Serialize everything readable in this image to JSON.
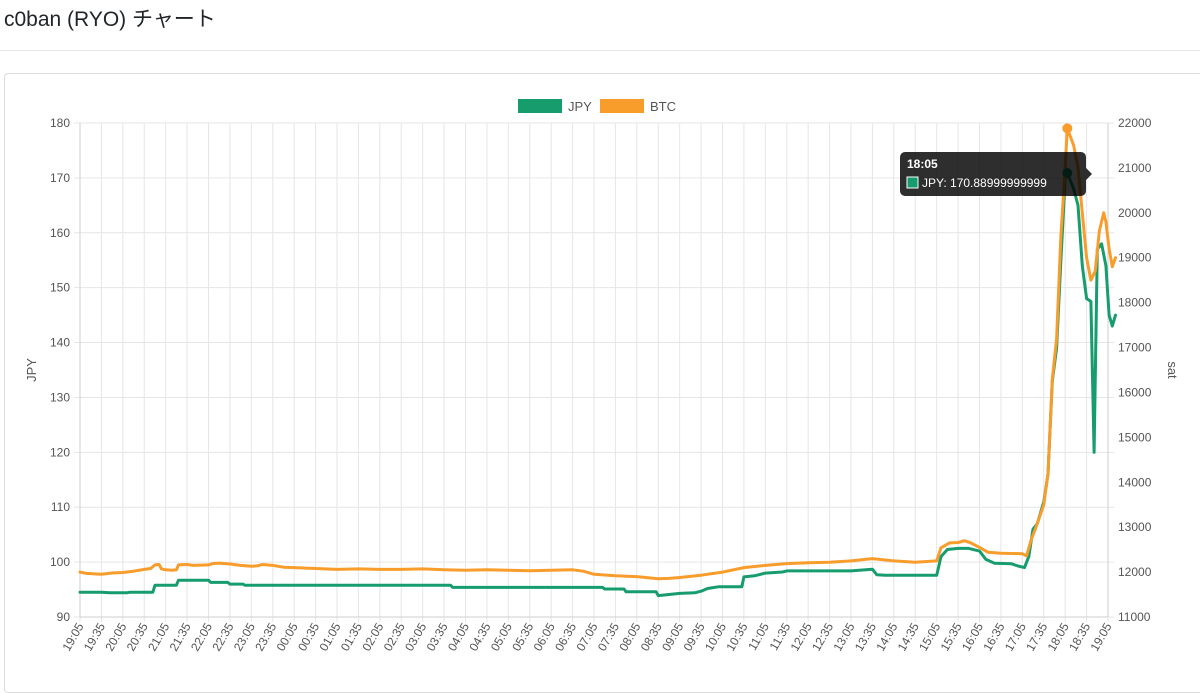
{
  "page": {
    "title": "c0ban (RYO) チャート"
  },
  "chart_data": {
    "type": "line",
    "legend_position": "top",
    "grid": true,
    "x_ticks": [
      "19:05",
      "19:35",
      "20:05",
      "20:35",
      "21:05",
      "21:35",
      "22:05",
      "22:35",
      "23:05",
      "23:35",
      "00:05",
      "00:35",
      "01:05",
      "01:35",
      "02:05",
      "02:35",
      "03:05",
      "03:35",
      "04:05",
      "04:35",
      "05:05",
      "05:35",
      "06:05",
      "06:35",
      "07:05",
      "07:35",
      "08:05",
      "08:35",
      "09:05",
      "09:35",
      "10:05",
      "10:35",
      "11:05",
      "11:35",
      "12:05",
      "12:35",
      "13:05",
      "13:35",
      "14:05",
      "14:35",
      "15:05",
      "15:35",
      "16:05",
      "16:35",
      "17:05",
      "17:35",
      "18:05",
      "18:35",
      "19:05"
    ],
    "y_left": {
      "label": "JPY",
      "min": 90,
      "max": 180,
      "step": 10
    },
    "y_right": {
      "label": "sat",
      "min": 11000,
      "max": 22000,
      "step": 1000
    },
    "series": [
      {
        "name": "JPY",
        "axis": "left",
        "color": "#179c6e",
        "points": [
          [
            0,
            94.5
          ],
          [
            1,
            94.5
          ],
          [
            1.4,
            94.4
          ],
          [
            2.2,
            94.4
          ],
          [
            2.3,
            94.5
          ],
          [
            3.4,
            94.5
          ],
          [
            3.5,
            95.8
          ],
          [
            4.5,
            95.8
          ],
          [
            4.6,
            96.7
          ],
          [
            6,
            96.7
          ],
          [
            6.1,
            96.3
          ],
          [
            6.9,
            96.3
          ],
          [
            7,
            96
          ],
          [
            7.6,
            96
          ],
          [
            7.7,
            95.8
          ],
          [
            17.3,
            95.8
          ],
          [
            17.4,
            95.4
          ],
          [
            24.4,
            95.4
          ],
          [
            24.5,
            95.1
          ],
          [
            25.4,
            95.1
          ],
          [
            25.5,
            94.6
          ],
          [
            26.9,
            94.6
          ],
          [
            27,
            93.9
          ],
          [
            27.5,
            94.1
          ],
          [
            28,
            94.3
          ],
          [
            28.7,
            94.4
          ],
          [
            29,
            94.7
          ],
          [
            29.3,
            95.2
          ],
          [
            29.8,
            95.5
          ],
          [
            30.9,
            95.5
          ],
          [
            31,
            97.3
          ],
          [
            31.5,
            97.5
          ],
          [
            32,
            98
          ],
          [
            32.8,
            98.2
          ],
          [
            33,
            98.4
          ],
          [
            36,
            98.4
          ],
          [
            37,
            98.7
          ],
          [
            37.2,
            97.7
          ],
          [
            37.6,
            97.6
          ],
          [
            40,
            97.6
          ],
          [
            40.2,
            101
          ],
          [
            40.5,
            102.3
          ],
          [
            41,
            102.5
          ],
          [
            41.5,
            102.5
          ],
          [
            42,
            102
          ],
          [
            42.3,
            100.5
          ],
          [
            42.7,
            99.8
          ],
          [
            43.5,
            99.7
          ],
          [
            43.8,
            99.3
          ],
          [
            44.1,
            99
          ],
          [
            44.3,
            101
          ],
          [
            44.5,
            106
          ],
          [
            44.7,
            107
          ],
          [
            45,
            111
          ],
          [
            45.2,
            116
          ],
          [
            45.4,
            133
          ],
          [
            45.6,
            139
          ],
          [
            45.8,
            155
          ],
          [
            46,
            170
          ],
          [
            46.1,
            170.89
          ],
          [
            46.4,
            168
          ],
          [
            46.6,
            165
          ],
          [
            46.8,
            154
          ],
          [
            47,
            148
          ],
          [
            47.2,
            147.5
          ],
          [
            47.35,
            120
          ],
          [
            47.5,
            157
          ],
          [
            47.7,
            158
          ],
          [
            47.9,
            154
          ],
          [
            48.05,
            145
          ],
          [
            48.2,
            143
          ],
          [
            48.35,
            145
          ]
        ]
      },
      {
        "name": "BTC",
        "axis": "right",
        "color": "#f89d2c",
        "points": [
          [
            0,
            12000
          ],
          [
            0.3,
            11970
          ],
          [
            1,
            11950
          ],
          [
            1.5,
            11980
          ],
          [
            2,
            11990
          ],
          [
            2.5,
            12020
          ],
          [
            3,
            12060
          ],
          [
            3.3,
            12080
          ],
          [
            3.5,
            12160
          ],
          [
            3.7,
            12170
          ],
          [
            3.8,
            12070
          ],
          [
            4,
            12050
          ],
          [
            4.3,
            12040
          ],
          [
            4.5,
            12050
          ],
          [
            4.6,
            12160
          ],
          [
            5,
            12170
          ],
          [
            5.3,
            12150
          ],
          [
            6,
            12160
          ],
          [
            6.2,
            12190
          ],
          [
            6.5,
            12200
          ],
          [
            7,
            12180
          ],
          [
            7.5,
            12150
          ],
          [
            8,
            12130
          ],
          [
            8.3,
            12140
          ],
          [
            8.5,
            12170
          ],
          [
            9,
            12150
          ],
          [
            9.5,
            12110
          ],
          [
            10,
            12100
          ],
          [
            11,
            12080
          ],
          [
            12,
            12060
          ],
          [
            13,
            12070
          ],
          [
            14,
            12060
          ],
          [
            15,
            12060
          ],
          [
            16,
            12070
          ],
          [
            17,
            12050
          ],
          [
            18,
            12040
          ],
          [
            19,
            12050
          ],
          [
            20,
            12040
          ],
          [
            21,
            12030
          ],
          [
            22,
            12040
          ],
          [
            23,
            12050
          ],
          [
            23.5,
            12020
          ],
          [
            24,
            11950
          ],
          [
            25,
            11920
          ],
          [
            26,
            11900
          ],
          [
            27,
            11850
          ],
          [
            27.5,
            11860
          ],
          [
            28,
            11880
          ],
          [
            29,
            11930
          ],
          [
            30,
            12000
          ],
          [
            31,
            12100
          ],
          [
            32,
            12150
          ],
          [
            33,
            12190
          ],
          [
            34,
            12210
          ],
          [
            35,
            12220
          ],
          [
            36,
            12250
          ],
          [
            37,
            12300
          ],
          [
            38,
            12250
          ],
          [
            39,
            12220
          ],
          [
            40,
            12250
          ],
          [
            40.2,
            12540
          ],
          [
            40.6,
            12650
          ],
          [
            41,
            12660
          ],
          [
            41.3,
            12700
          ],
          [
            41.6,
            12650
          ],
          [
            42,
            12550
          ],
          [
            42.4,
            12440
          ],
          [
            43,
            12420
          ],
          [
            44,
            12410
          ],
          [
            44.2,
            12360
          ],
          [
            44.4,
            12700
          ],
          [
            44.6,
            12950
          ],
          [
            45,
            13500
          ],
          [
            45.2,
            14200
          ],
          [
            45.4,
            16300
          ],
          [
            45.6,
            17200
          ],
          [
            45.8,
            19500
          ],
          [
            46,
            21000
          ],
          [
            46.1,
            21880
          ],
          [
            46.4,
            21500
          ],
          [
            46.6,
            21000
          ],
          [
            46.8,
            20000
          ],
          [
            47,
            19000
          ],
          [
            47.2,
            18500
          ],
          [
            47.4,
            18700
          ],
          [
            47.6,
            19600
          ],
          [
            47.8,
            20000
          ],
          [
            47.9,
            19800
          ],
          [
            48.05,
            19200
          ],
          [
            48.2,
            18800
          ],
          [
            48.35,
            19000
          ]
        ]
      }
    ],
    "tooltip": {
      "title": "18:05",
      "label": "JPY: 170.88999999999",
      "series": "JPY"
    }
  }
}
